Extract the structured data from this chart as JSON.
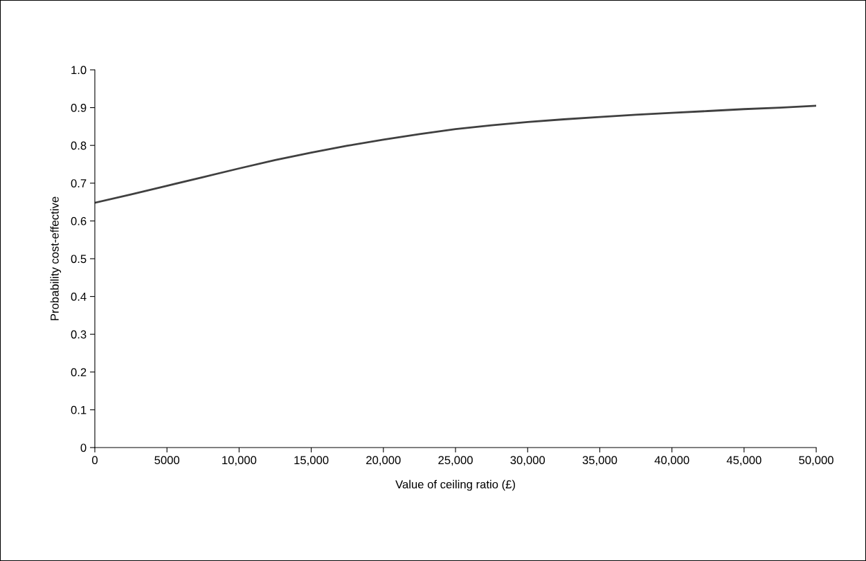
{
  "chart_data": {
    "type": "line",
    "xlabel": "Value of ceiling ratio (£)",
    "ylabel": "Probability cost-effective",
    "x": [
      0,
      2500,
      5000,
      7500,
      10000,
      12500,
      15000,
      17500,
      20000,
      22500,
      25000,
      27500,
      30000,
      32500,
      35000,
      37500,
      40000,
      42500,
      45000,
      47500,
      50000
    ],
    "series": [
      {
        "color": "#404040",
        "values": [
          0.648,
          0.67,
          0.693,
          0.716,
          0.739,
          0.761,
          0.781,
          0.799,
          0.815,
          0.83,
          0.843,
          0.853,
          0.862,
          0.869,
          0.875,
          0.881,
          0.886,
          0.891,
          0.896,
          0.9,
          0.905
        ]
      }
    ],
    "xlim": [
      0,
      50000
    ],
    "ylim": [
      0,
      1.0
    ],
    "xticks": [
      0,
      5000,
      {
        "value": 10000,
        "label": "10,000"
      },
      {
        "value": 15000,
        "label": "15,000"
      },
      {
        "value": 20000,
        "label": "20,000"
      },
      {
        "value": 25000,
        "label": "25,000"
      },
      {
        "value": 30000,
        "label": "30,000"
      },
      {
        "value": 35000,
        "label": "35,000"
      },
      {
        "value": 40000,
        "label": "40,000"
      },
      {
        "value": 45000,
        "label": "45,000"
      },
      {
        "value": 50000,
        "label": "50,000"
      }
    ],
    "yticks": [
      0,
      0.1,
      0.2,
      0.3,
      0.4,
      0.5,
      0.6,
      0.7,
      0.8,
      0.9,
      {
        "value": 1.0,
        "label": "1.0"
      }
    ],
    "grid": false,
    "legend": false,
    "marker": "none",
    "line_style": "solid"
  }
}
